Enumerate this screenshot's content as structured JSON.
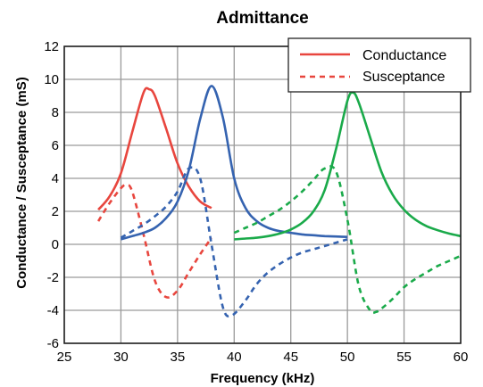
{
  "chart_data": {
    "type": "line",
    "title": "Admittance",
    "xlabel": "Frequency (kHz)",
    "ylabel": "Conductance / Susceptance  (mS)",
    "xlim": [
      25,
      60
    ],
    "ylim": [
      -6,
      12
    ],
    "xticks": [
      25,
      30,
      35,
      40,
      45,
      50,
      55,
      60
    ],
    "yticks": [
      -6,
      -4,
      -2,
      0,
      2,
      4,
      6,
      8,
      10,
      12
    ],
    "grid": true,
    "legend": {
      "position": "top-right",
      "entries": [
        {
          "label": "Conductance",
          "style": "solid",
          "color": "#e8463e"
        },
        {
          "label": "Susceptance",
          "style": "dashed",
          "color": "#e8463e"
        }
      ]
    },
    "series": [
      {
        "kind": "conductance",
        "style": "solid",
        "color": "#e8463e",
        "points": [
          [
            28,
            2.1
          ],
          [
            29,
            2.9
          ],
          [
            30,
            4.3
          ],
          [
            31,
            6.8
          ],
          [
            32,
            9.2
          ],
          [
            32.5,
            9.4
          ],
          [
            33,
            9.0
          ],
          [
            34,
            7.0
          ],
          [
            35,
            4.9
          ],
          [
            36,
            3.5
          ],
          [
            37,
            2.6
          ],
          [
            38,
            2.2
          ]
        ]
      },
      {
        "kind": "susceptance",
        "style": "dashed",
        "color": "#e8463e",
        "points": [
          [
            28,
            1.4
          ],
          [
            29,
            2.5
          ],
          [
            30,
            3.4
          ],
          [
            30.5,
            3.6
          ],
          [
            31,
            3.2
          ],
          [
            32,
            0.6
          ],
          [
            33,
            -2.2
          ],
          [
            34,
            -3.2
          ],
          [
            35,
            -2.8
          ],
          [
            36,
            -1.7
          ],
          [
            37,
            -0.6
          ],
          [
            38,
            0.4
          ]
        ]
      },
      {
        "kind": "conductance",
        "style": "solid",
        "color": "#3563b0",
        "points": [
          [
            30,
            0.3
          ],
          [
            31,
            0.5
          ],
          [
            32,
            0.7
          ],
          [
            33,
            1.0
          ],
          [
            34,
            1.6
          ],
          [
            35,
            2.6
          ],
          [
            36,
            4.5
          ],
          [
            37,
            7.6
          ],
          [
            38,
            9.6
          ],
          [
            39,
            7.7
          ],
          [
            40,
            4.0
          ],
          [
            41,
            2.2
          ],
          [
            42,
            1.4
          ],
          [
            43,
            1.0
          ],
          [
            44,
            0.8
          ],
          [
            45,
            0.7
          ],
          [
            46,
            0.6
          ],
          [
            47,
            0.55
          ],
          [
            48,
            0.5
          ],
          [
            50,
            0.45
          ]
        ]
      },
      {
        "kind": "susceptance",
        "style": "dashed",
        "color": "#3563b0",
        "points": [
          [
            30,
            0.4
          ],
          [
            31,
            0.8
          ],
          [
            32,
            1.2
          ],
          [
            33,
            1.7
          ],
          [
            34,
            2.3
          ],
          [
            35,
            3.2
          ],
          [
            36,
            4.6
          ],
          [
            37,
            4.0
          ],
          [
            38,
            0.0
          ],
          [
            39,
            -3.8
          ],
          [
            39.8,
            -4.3
          ],
          [
            41,
            -3.4
          ],
          [
            42,
            -2.4
          ],
          [
            43,
            -1.7
          ],
          [
            44,
            -1.2
          ],
          [
            45,
            -0.8
          ],
          [
            46,
            -0.5
          ],
          [
            47,
            -0.3
          ],
          [
            48,
            -0.1
          ],
          [
            50,
            0.3
          ]
        ]
      },
      {
        "kind": "conductance",
        "style": "solid",
        "color": "#1aaa4a",
        "points": [
          [
            40,
            0.3
          ],
          [
            41,
            0.35
          ],
          [
            42,
            0.4
          ],
          [
            43,
            0.5
          ],
          [
            44,
            0.65
          ],
          [
            45,
            0.9
          ],
          [
            46,
            1.3
          ],
          [
            47,
            2.0
          ],
          [
            48,
            3.3
          ],
          [
            49,
            5.8
          ],
          [
            50,
            8.7
          ],
          [
            50.5,
            9.2
          ],
          [
            51,
            8.6
          ],
          [
            52,
            6.5
          ],
          [
            53,
            4.4
          ],
          [
            54,
            3.0
          ],
          [
            55,
            2.1
          ],
          [
            56,
            1.5
          ],
          [
            57,
            1.1
          ],
          [
            58,
            0.85
          ],
          [
            59,
            0.65
          ],
          [
            60,
            0.5
          ]
        ]
      },
      {
        "kind": "susceptance",
        "style": "dashed",
        "color": "#1aaa4a",
        "points": [
          [
            40,
            0.7
          ],
          [
            41,
            1.0
          ],
          [
            42,
            1.3
          ],
          [
            43,
            1.7
          ],
          [
            44,
            2.1
          ],
          [
            45,
            2.6
          ],
          [
            46,
            3.2
          ],
          [
            47,
            3.9
          ],
          [
            48,
            4.6
          ],
          [
            49,
            4.4
          ],
          [
            50,
            1.5
          ],
          [
            51,
            -2.5
          ],
          [
            52,
            -4.0
          ],
          [
            52.5,
            -4.1
          ],
          [
            53,
            -3.9
          ],
          [
            54,
            -3.3
          ],
          [
            55,
            -2.6
          ],
          [
            56,
            -2.1
          ],
          [
            57,
            -1.7
          ],
          [
            58,
            -1.3
          ],
          [
            59,
            -1.0
          ],
          [
            60,
            -0.7
          ]
        ]
      }
    ]
  }
}
